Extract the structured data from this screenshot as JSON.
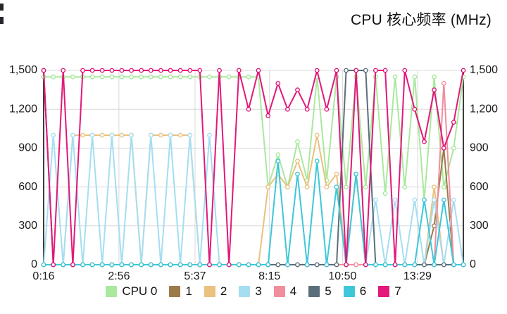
{
  "title": "CPU 核心频率 (MHz)",
  "axis_style": {
    "grid_color": "#d9d9d9",
    "axis_color": "#3c3c3c",
    "text_color": "#1a1a1a"
  },
  "chart_data": {
    "type": "line",
    "title": "CPU 核心频率 (MHz)",
    "grid": true,
    "legend_position": "bottom",
    "x_tick_labels": [
      "0:16",
      "2:56",
      "5:37",
      "8:15",
      "10:50",
      "13:29"
    ],
    "x_tick_values": [
      0.27,
      2.93,
      5.62,
      8.25,
      10.83,
      13.48
    ],
    "x_domain": [
      0.27,
      15.1
    ],
    "y_tick_labels": [
      "0",
      "300",
      "600",
      "900",
      "1,200",
      "1,500"
    ],
    "y_tick_values": [
      0,
      300,
      600,
      900,
      1200,
      1500
    ],
    "y_domain": [
      0,
      1500
    ],
    "x": [
      0.27,
      0.61,
      0.96,
      1.3,
      1.65,
      1.99,
      2.34,
      2.68,
      3.03,
      3.37,
      3.72,
      4.06,
      4.41,
      4.75,
      5.1,
      5.44,
      5.79,
      6.13,
      6.48,
      6.82,
      7.17,
      7.51,
      7.86,
      8.2,
      8.55,
      8.89,
      9.24,
      9.58,
      9.93,
      10.27,
      10.62,
      10.96,
      11.31,
      11.65,
      12.0,
      12.34,
      12.69,
      13.03,
      13.38,
      13.72,
      14.07,
      14.41,
      14.76,
      15.1
    ],
    "series": [
      {
        "name": "CPU 0",
        "color": "#a9e99d",
        "values": [
          1450,
          1450,
          1450,
          1450,
          1450,
          1450,
          1450,
          1450,
          1450,
          1450,
          1450,
          1450,
          1450,
          1450,
          1450,
          1450,
          1450,
          1450,
          1450,
          1450,
          1450,
          1450,
          1450,
          600,
          850,
          600,
          950,
          650,
          1450,
          650,
          1450,
          600,
          1450,
          600,
          1450,
          550,
          1450,
          600,
          1450,
          500,
          1450,
          600,
          900,
          1450
        ]
      },
      {
        "name": "1",
        "color": "#9c7b4a",
        "values": [
          0,
          0,
          0,
          0,
          0,
          0,
          0,
          0,
          0,
          0,
          0,
          0,
          0,
          0,
          0,
          0,
          0,
          0,
          0,
          0,
          0,
          0,
          0,
          0,
          0,
          0,
          0,
          0,
          0,
          0,
          0,
          0,
          0,
          0,
          0,
          0,
          0,
          0,
          0,
          0,
          300,
          900,
          0,
          0
        ]
      },
      {
        "name": "2",
        "color": "#eac17e",
        "values": [
          0,
          0,
          0,
          1000,
          1000,
          1000,
          1000,
          1000,
          1000,
          1000,
          0,
          1000,
          1000,
          1000,
          1000,
          1000,
          0,
          0,
          0,
          0,
          0,
          0,
          0,
          600,
          700,
          600,
          800,
          600,
          1000,
          600,
          700,
          0,
          700,
          0,
          0,
          0,
          0,
          0,
          0,
          0,
          600,
          0,
          0,
          0
        ]
      },
      {
        "name": "3",
        "color": "#a5def2",
        "values": [
          0,
          1000,
          0,
          1000,
          0,
          1000,
          0,
          1000,
          0,
          1000,
          0,
          1000,
          0,
          1000,
          0,
          1000,
          0,
          1000,
          0,
          0,
          0,
          0,
          0,
          0,
          0,
          0,
          0,
          0,
          0,
          0,
          0,
          0,
          0,
          0,
          500,
          0,
          500,
          0,
          500,
          0,
          500,
          0,
          500,
          0
        ]
      },
      {
        "name": "4",
        "color": "#f08e9c",
        "values": [
          0,
          0,
          0,
          0,
          0,
          0,
          0,
          0,
          0,
          0,
          0,
          0,
          0,
          0,
          0,
          0,
          0,
          0,
          0,
          0,
          0,
          0,
          0,
          0,
          0,
          0,
          0,
          0,
          0,
          0,
          0,
          0,
          0,
          0,
          0,
          0,
          0,
          0,
          0,
          0,
          0,
          1400,
          0,
          0
        ]
      },
      {
        "name": "5",
        "color": "#5b6f7a",
        "values": [
          1500,
          0,
          0,
          0,
          0,
          0,
          0,
          0,
          0,
          0,
          0,
          0,
          0,
          0,
          0,
          0,
          0,
          0,
          0,
          0,
          0,
          0,
          0,
          0,
          0,
          0,
          0,
          0,
          0,
          0,
          0,
          1500,
          1500,
          1500,
          0,
          0,
          0,
          0,
          0,
          0,
          0,
          0,
          0,
          0
        ]
      },
      {
        "name": "6",
        "color": "#3ec7d9",
        "values": [
          0,
          0,
          0,
          0,
          0,
          0,
          0,
          0,
          0,
          0,
          0,
          0,
          0,
          0,
          0,
          0,
          0,
          0,
          0,
          0,
          0,
          0,
          0,
          0,
          800,
          0,
          700,
          0,
          800,
          0,
          600,
          0,
          700,
          0,
          0,
          0,
          0,
          0,
          0,
          500,
          0,
          500,
          0,
          0
        ]
      },
      {
        "name": "7",
        "color": "#e2187a",
        "values": [
          1500,
          0,
          1500,
          0,
          1500,
          1500,
          1500,
          1500,
          1500,
          1500,
          1500,
          1500,
          1500,
          1500,
          1500,
          1500,
          1500,
          0,
          1500,
          0,
          1500,
          1200,
          1500,
          1150,
          1400,
          1200,
          1350,
          1200,
          1500,
          1200,
          1500,
          0,
          1500,
          0,
          1500,
          1500,
          0,
          1500,
          1200,
          950,
          1350,
          900,
          1100,
          1500
        ]
      }
    ]
  }
}
